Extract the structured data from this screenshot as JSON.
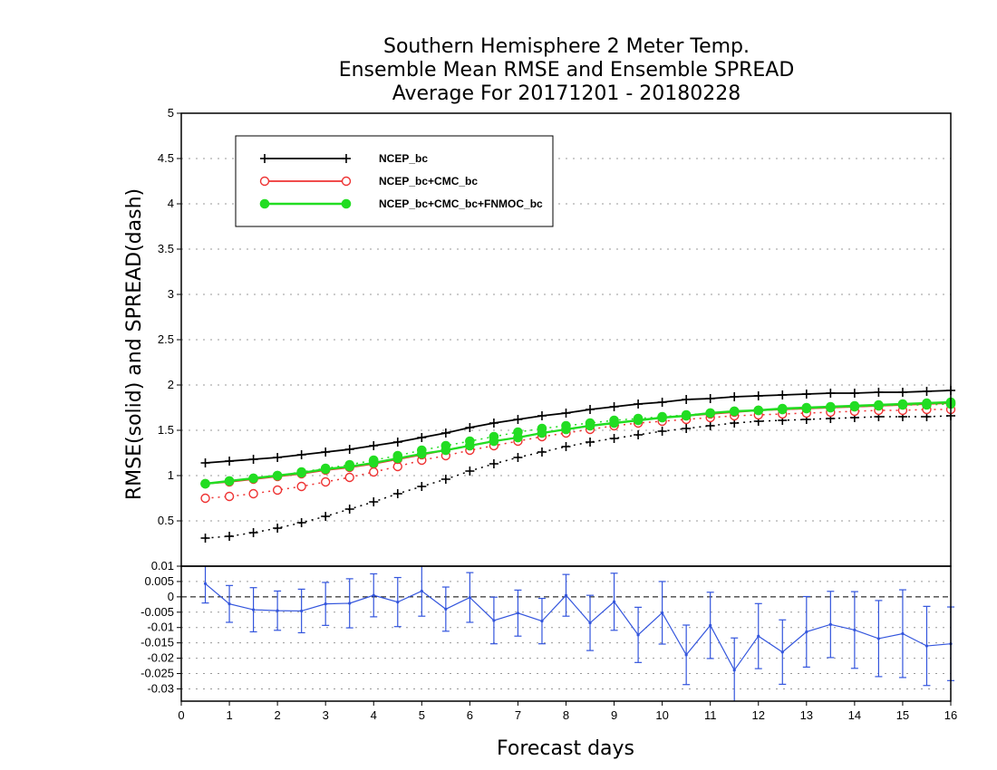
{
  "chart_data": [
    {
      "type": "line",
      "title": [
        "Southern Hemisphere 2 Meter Temp.",
        "Ensemble Mean RMSE and Ensemble SPREAD",
        "Average For 20171201 - 20180228"
      ],
      "ylabel": "RMSE(solid)  and  SPREAD(dash)",
      "xlim": [
        0,
        16
      ],
      "ylim": [
        0,
        5
      ],
      "yticks": [
        "0.5",
        "1",
        "1.5",
        "2",
        "2.5",
        "3",
        "3.5",
        "4",
        "4.5",
        "5"
      ],
      "grid": true,
      "legend_position": "top-left",
      "x": [
        0.5,
        1,
        1.5,
        2,
        2.5,
        3,
        3.5,
        4,
        4.5,
        5,
        5.5,
        6,
        6.5,
        7,
        7.5,
        8,
        8.5,
        9,
        9.5,
        10,
        10.5,
        11,
        11.5,
        12,
        12.5,
        13,
        13.5,
        14,
        14.5,
        15,
        15.5,
        16
      ],
      "series": [
        {
          "name": "NCEP_bc",
          "color": "#000000",
          "marker": "plus",
          "rmse": [
            1.14,
            1.16,
            1.18,
            1.2,
            1.23,
            1.26,
            1.29,
            1.33,
            1.37,
            1.42,
            1.47,
            1.53,
            1.58,
            1.62,
            1.66,
            1.69,
            1.73,
            1.76,
            1.79,
            1.81,
            1.84,
            1.85,
            1.87,
            1.88,
            1.89,
            1.9,
            1.91,
            1.91,
            1.92,
            1.92,
            1.93,
            1.94
          ],
          "spread": [
            0.31,
            0.33,
            0.37,
            0.42,
            0.48,
            0.55,
            0.63,
            0.71,
            0.8,
            0.88,
            0.96,
            1.05,
            1.13,
            1.2,
            1.26,
            1.32,
            1.37,
            1.41,
            1.45,
            1.49,
            1.52,
            1.55,
            1.58,
            1.6,
            1.61,
            1.62,
            1.63,
            1.64,
            1.65,
            1.65,
            1.65,
            1.66
          ]
        },
        {
          "name": "NCEP_bc+CMC_bc",
          "color": "#ee3333",
          "marker": "open-circle",
          "rmse": [
            0.91,
            0.93,
            0.96,
            0.99,
            1.02,
            1.06,
            1.09,
            1.13,
            1.18,
            1.23,
            1.28,
            1.33,
            1.38,
            1.42,
            1.47,
            1.51,
            1.55,
            1.58,
            1.61,
            1.64,
            1.66,
            1.68,
            1.7,
            1.72,
            1.73,
            1.74,
            1.75,
            1.76,
            1.77,
            1.78,
            1.79,
            1.8
          ],
          "spread": [
            0.75,
            0.77,
            0.8,
            0.84,
            0.88,
            0.93,
            0.98,
            1.04,
            1.1,
            1.17,
            1.22,
            1.28,
            1.33,
            1.38,
            1.43,
            1.47,
            1.51,
            1.55,
            1.58,
            1.6,
            1.62,
            1.64,
            1.66,
            1.67,
            1.68,
            1.69,
            1.7,
            1.71,
            1.72,
            1.72,
            1.73,
            1.73
          ]
        },
        {
          "name": "NCEP_bc+CMC_bc+FNMOC_bc",
          "color": "#22dd22",
          "marker": "filled-circle",
          "rmse": [
            0.91,
            0.94,
            0.97,
            1.0,
            1.03,
            1.07,
            1.1,
            1.14,
            1.19,
            1.24,
            1.28,
            1.33,
            1.38,
            1.42,
            1.47,
            1.51,
            1.55,
            1.58,
            1.61,
            1.64,
            1.66,
            1.69,
            1.71,
            1.72,
            1.74,
            1.75,
            1.76,
            1.77,
            1.78,
            1.79,
            1.8,
            1.81
          ],
          "spread": [
            0.91,
            0.94,
            0.97,
            1.0,
            1.04,
            1.08,
            1.12,
            1.17,
            1.22,
            1.28,
            1.33,
            1.38,
            1.43,
            1.48,
            1.52,
            1.55,
            1.58,
            1.61,
            1.63,
            1.65,
            1.67,
            1.69,
            1.71,
            1.72,
            1.73,
            1.74,
            1.75,
            1.76,
            1.77,
            1.78,
            1.78,
            1.79
          ]
        }
      ]
    },
    {
      "type": "line",
      "xlabel": "Forecast days",
      "xlim": [
        0,
        16
      ],
      "xticks": [
        "0",
        "1",
        "2",
        "3",
        "4",
        "5",
        "6",
        "7",
        "8",
        "9",
        "10",
        "11",
        "12",
        "13",
        "14",
        "15",
        "16"
      ],
      "ylim": [
        -0.034,
        0.01
      ],
      "yticks": [
        "0.01",
        "0.005",
        "0",
        "-0.005",
        "-0.01",
        "-0.015",
        "-0.02",
        "-0.025",
        "-0.03"
      ],
      "grid": true,
      "color": "#3355dd",
      "x": [
        0.5,
        1,
        1.5,
        2,
        2.5,
        3,
        3.5,
        4,
        4.5,
        5,
        5.5,
        6,
        6.5,
        7,
        7.5,
        8,
        8.5,
        9,
        9.5,
        10,
        10.5,
        11,
        11.5,
        12,
        12.5,
        13,
        13.5,
        14,
        14.5,
        15,
        15.5,
        16
      ],
      "values": [
        0.0043,
        -0.0023,
        -0.0042,
        -0.0045,
        -0.0046,
        -0.0023,
        -0.0021,
        0.0005,
        -0.0017,
        0.0019,
        -0.004,
        -0.0002,
        -0.0077,
        -0.0053,
        -0.0079,
        0.0005,
        -0.0085,
        -0.0016,
        -0.0124,
        -0.0052,
        -0.0189,
        -0.0093,
        -0.0239,
        -0.0128,
        -0.018,
        -0.0114,
        -0.009,
        -0.0108,
        -0.0136,
        -0.012,
        -0.016,
        -0.0153
      ],
      "error": [
        0.0063,
        0.006,
        0.0072,
        0.0064,
        0.0071,
        0.007,
        0.008,
        0.007,
        0.008,
        0.0082,
        0.0072,
        0.0081,
        0.0076,
        0.0075,
        0.0074,
        0.0068,
        0.009,
        0.0093,
        0.009,
        0.0102,
        0.0097,
        0.0108,
        0.0105,
        0.0106,
        0.0105,
        0.0115,
        0.0108,
        0.0125,
        0.0124,
        0.0143,
        0.0129,
        0.012
      ]
    }
  ]
}
